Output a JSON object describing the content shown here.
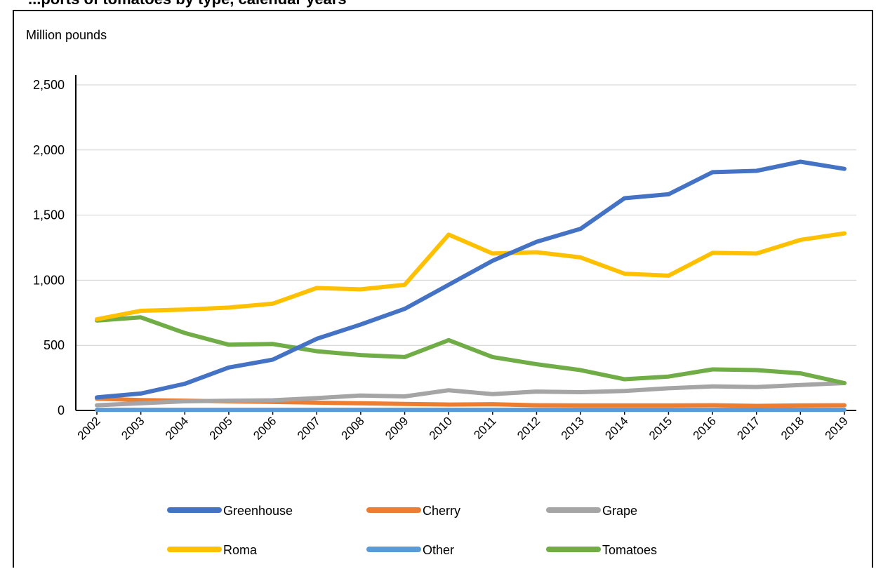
{
  "chart_data": {
    "type": "line",
    "title": "...ports of tomatoes by type, calendar years",
    "ylabel": "Million pounds",
    "xlabel": "",
    "ylim": [
      0,
      2500
    ],
    "yticks": [
      0,
      500,
      1000,
      1500,
      2000,
      2500
    ],
    "ytick_labels": [
      "0",
      "500",
      "1,000",
      "1,500",
      "2,000",
      "2,500"
    ],
    "grid": true,
    "legend_position": "bottom",
    "categories": [
      "2002",
      "2003",
      "2004",
      "2005",
      "2006",
      "2007",
      "2008",
      "2009",
      "2010",
      "2011",
      "2012",
      "2013",
      "2014",
      "2015",
      "2016",
      "2017",
      "2018",
      "2019"
    ],
    "series": [
      {
        "name": "Greenhouse",
        "color": "#4472C4",
        "values": [
          100,
          130,
          205,
          330,
          390,
          550,
          660,
          780,
          965,
          1150,
          1295,
          1395,
          1630,
          1660,
          1830,
          1840,
          1910,
          1855
        ]
      },
      {
        "name": "Cherry",
        "color": "#ED7D31",
        "values": [
          90,
          80,
          75,
          70,
          65,
          60,
          55,
          50,
          45,
          48,
          40,
          38,
          38,
          38,
          40,
          35,
          38,
          40
        ]
      },
      {
        "name": "Grape",
        "color": "#A5A5A5",
        "values": [
          40,
          55,
          70,
          75,
          78,
          95,
          115,
          108,
          155,
          125,
          145,
          140,
          150,
          170,
          185,
          180,
          195,
          210
        ]
      },
      {
        "name": "Roma",
        "color": "#FFC000",
        "values": [
          700,
          765,
          775,
          790,
          820,
          940,
          930,
          965,
          1350,
          1205,
          1215,
          1175,
          1050,
          1035,
          1210,
          1205,
          1310,
          1360
        ]
      },
      {
        "name": "Other",
        "color": "#5B9BD5",
        "values": [
          5,
          5,
          5,
          5,
          5,
          5,
          5,
          5,
          5,
          5,
          5,
          5,
          5,
          5,
          5,
          5,
          5,
          5
        ]
      },
      {
        "name": "Tomatoes",
        "color": "#70AD47",
        "values": [
          690,
          715,
          595,
          505,
          510,
          455,
          425,
          410,
          540,
          410,
          355,
          310,
          240,
          260,
          315,
          310,
          285,
          210
        ]
      }
    ]
  }
}
